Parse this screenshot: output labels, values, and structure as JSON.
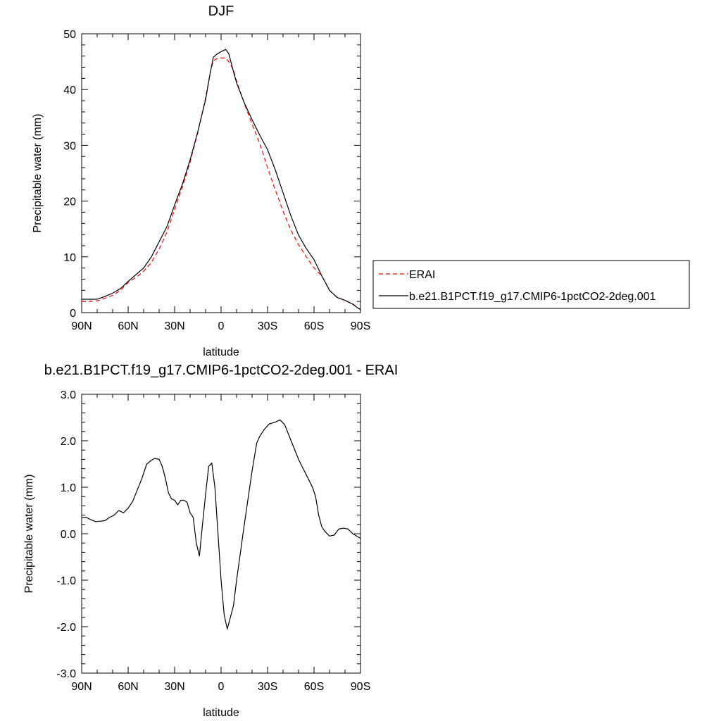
{
  "chart_data": [
    {
      "type": "line",
      "title": "DJF",
      "xlabel": "latitude",
      "ylabel": "Precipitable water (mm)",
      "xlim": [
        90,
        -90
      ],
      "ylim": [
        0,
        50
      ],
      "x_ticks": [
        {
          "value": 90,
          "label": "90N"
        },
        {
          "value": 60,
          "label": "60N"
        },
        {
          "value": 30,
          "label": "30N"
        },
        {
          "value": 0,
          "label": "0"
        },
        {
          "value": -30,
          "label": "30S"
        },
        {
          "value": -60,
          "label": "60S"
        },
        {
          "value": -90,
          "label": "90S"
        }
      ],
      "y_ticks": [
        {
          "value": 0,
          "label": "0"
        },
        {
          "value": 10,
          "label": "10"
        },
        {
          "value": 20,
          "label": "20"
        },
        {
          "value": 30,
          "label": "30"
        },
        {
          "value": 40,
          "label": "40"
        },
        {
          "value": 50,
          "label": "50"
        }
      ],
      "grid": false,
      "legend": {
        "placement": "right"
      },
      "series": [
        {
          "name": "ERAI",
          "color": "#ff0000",
          "dash": "dashed",
          "points": [
            [
              90,
              2.0
            ],
            [
              85,
              2.0
            ],
            [
              80,
              2.1
            ],
            [
              75,
              2.6
            ],
            [
              70,
              3.1
            ],
            [
              65,
              4.0
            ],
            [
              60,
              5.4
            ],
            [
              55,
              6.3
            ],
            [
              50,
              7.4
            ],
            [
              45,
              9.0
            ],
            [
              40,
              11.4
            ],
            [
              35,
              14.4
            ],
            [
              30,
              18.5
            ],
            [
              25,
              22.5
            ],
            [
              20,
              27.0
            ],
            [
              15,
              32.3
            ],
            [
              10,
              38.5
            ],
            [
              7,
              43.0
            ],
            [
              5,
              45.2
            ],
            [
              3,
              45.5
            ],
            [
              0,
              45.7
            ],
            [
              -3,
              45.6
            ],
            [
              -5,
              45.0
            ],
            [
              -8,
              43.5
            ],
            [
              -10,
              41.5
            ],
            [
              -15,
              37.5
            ],
            [
              -20,
              33.8
            ],
            [
              -25,
              30.3
            ],
            [
              -30,
              26.0
            ],
            [
              -35,
              22.0
            ],
            [
              -40,
              18.2
            ],
            [
              -45,
              14.8
            ],
            [
              -50,
              12.2
            ],
            [
              -55,
              10.0
            ],
            [
              -60,
              8.0
            ],
            [
              -65,
              6.6
            ],
            [
              -70,
              4.0
            ],
            [
              -75,
              2.7
            ],
            [
              -80,
              2.2
            ],
            [
              -85,
              1.6
            ],
            [
              -88,
              0.9
            ],
            [
              -90,
              0.6
            ]
          ]
        },
        {
          "name": "b.e21.B1PCT.f19_g17.CMIP6-1pctCO2-2deg.001",
          "color": "#000000",
          "dash": "solid",
          "points": [
            [
              90,
              2.4
            ],
            [
              85,
              2.4
            ],
            [
              80,
              2.4
            ],
            [
              75,
              2.9
            ],
            [
              70,
              3.5
            ],
            [
              65,
              4.3
            ],
            [
              60,
              5.6
            ],
            [
              55,
              6.8
            ],
            [
              50,
              8.0
            ],
            [
              45,
              10.0
            ],
            [
              40,
              12.7
            ],
            [
              35,
              15.4
            ],
            [
              30,
              19.3
            ],
            [
              25,
              23.0
            ],
            [
              20,
              27.4
            ],
            [
              15,
              32.5
            ],
            [
              10,
              38.2
            ],
            [
              7,
              43.0
            ],
            [
              5,
              45.8
            ],
            [
              3,
              46.3
            ],
            [
              0,
              46.8
            ],
            [
              -3,
              47.2
            ],
            [
              -5,
              46.4
            ],
            [
              -8,
              43.2
            ],
            [
              -10,
              41.2
            ],
            [
              -15,
              37.6
            ],
            [
              -20,
              34.6
            ],
            [
              -25,
              31.8
            ],
            [
              -30,
              29.2
            ],
            [
              -35,
              25.6
            ],
            [
              -40,
              21.5
            ],
            [
              -45,
              17.4
            ],
            [
              -50,
              13.9
            ],
            [
              -55,
              11.5
            ],
            [
              -60,
              9.5
            ],
            [
              -65,
              6.6
            ],
            [
              -70,
              4.0
            ],
            [
              -75,
              2.7
            ],
            [
              -80,
              2.2
            ],
            [
              -85,
              1.5
            ],
            [
              -88,
              0.9
            ],
            [
              -90,
              0.5
            ]
          ]
        }
      ]
    },
    {
      "type": "line",
      "title": "b.e21.B1PCT.f19_g17.CMIP6-1pctCO2-2deg.001 - ERAI",
      "xlabel": "latitude",
      "ylabel": "Precipitable water (mm)",
      "xlim": [
        90,
        -90
      ],
      "ylim": [
        -3.0,
        3.0
      ],
      "x_ticks": [
        {
          "value": 90,
          "label": "90N"
        },
        {
          "value": 60,
          "label": "60N"
        },
        {
          "value": 30,
          "label": "30N"
        },
        {
          "value": 0,
          "label": "0"
        },
        {
          "value": -30,
          "label": "30S"
        },
        {
          "value": -60,
          "label": "60S"
        },
        {
          "value": -90,
          "label": "90S"
        }
      ],
      "y_ticks": [
        {
          "value": -3.0,
          "label": "-3.0"
        },
        {
          "value": -2.0,
          "label": "-2.0"
        },
        {
          "value": -1.0,
          "label": "-1.0"
        },
        {
          "value": 0.0,
          "label": "0.0"
        },
        {
          "value": 1.0,
          "label": "1.0"
        },
        {
          "value": 2.0,
          "label": "2.0"
        },
        {
          "value": 3.0,
          "label": "3.0"
        }
      ],
      "grid": false,
      "series": [
        {
          "color": "#000000",
          "dash": "solid",
          "points": [
            [
              90,
              0.34
            ],
            [
              87,
              0.35
            ],
            [
              84,
              0.3
            ],
            [
              81,
              0.26
            ],
            [
              78,
              0.27
            ],
            [
              75,
              0.28
            ],
            [
              72,
              0.35
            ],
            [
              69,
              0.4
            ],
            [
              66,
              0.5
            ],
            [
              63,
              0.45
            ],
            [
              60,
              0.55
            ],
            [
              57,
              0.7
            ],
            [
              54,
              0.95
            ],
            [
              51,
              1.2
            ],
            [
              48,
              1.5
            ],
            [
              45,
              1.58
            ],
            [
              43,
              1.62
            ],
            [
              40,
              1.6
            ],
            [
              38,
              1.45
            ],
            [
              36,
              1.2
            ],
            [
              34,
              0.88
            ],
            [
              32,
              0.75
            ],
            [
              30,
              0.72
            ],
            [
              28,
              0.62
            ],
            [
              26,
              0.72
            ],
            [
              24,
              0.72
            ],
            [
              22,
              0.68
            ],
            [
              20,
              0.45
            ],
            [
              18,
              0.35
            ],
            [
              16,
              -0.2
            ],
            [
              14,
              -0.48
            ],
            [
              12,
              0.2
            ],
            [
              10,
              0.85
            ],
            [
              8,
              1.45
            ],
            [
              6,
              1.52
            ],
            [
              4,
              1.0
            ],
            [
              2,
              0.0
            ],
            [
              0,
              -1.0
            ],
            [
              -2,
              -1.75
            ],
            [
              -4,
              -2.05
            ],
            [
              -6,
              -1.8
            ],
            [
              -8,
              -1.55
            ],
            [
              -10,
              -1.0
            ],
            [
              -15,
              0.2
            ],
            [
              -20,
              1.35
            ],
            [
              -23,
              1.95
            ],
            [
              -25,
              2.1
            ],
            [
              -28,
              2.25
            ],
            [
              -31,
              2.36
            ],
            [
              -35,
              2.4
            ],
            [
              -38,
              2.45
            ],
            [
              -41,
              2.35
            ],
            [
              -44,
              2.1
            ],
            [
              -47,
              1.85
            ],
            [
              -50,
              1.6
            ],
            [
              -53,
              1.4
            ],
            [
              -56,
              1.2
            ],
            [
              -59,
              1.0
            ],
            [
              -61,
              0.8
            ],
            [
              -63,
              0.4
            ],
            [
              -65,
              0.15
            ],
            [
              -67,
              0.05
            ],
            [
              -70,
              -0.05
            ],
            [
              -73,
              -0.03
            ],
            [
              -76,
              0.1
            ],
            [
              -79,
              0.12
            ],
            [
              -82,
              0.1
            ],
            [
              -85,
              0.0
            ],
            [
              -88,
              -0.06
            ],
            [
              -90,
              -0.1
            ]
          ]
        }
      ]
    }
  ]
}
